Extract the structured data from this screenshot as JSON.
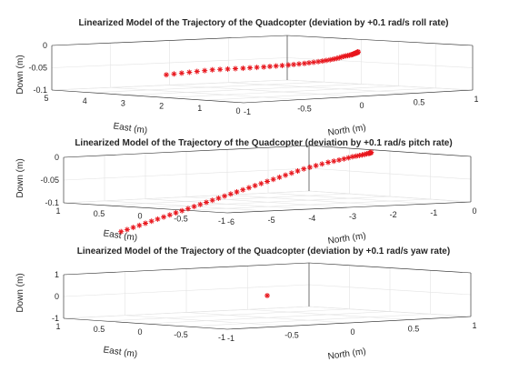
{
  "marker_color": "#e8161d",
  "chart_data": [
    {
      "type": "scatter3d",
      "title": "Linearized Model of the Trajectory of the Quadcopter (deviation by +0.1 rad/s roll rate)",
      "xlabel": "North (m)",
      "ylabel": "East (m)",
      "zlabel": "Down (m)",
      "xlim": [
        -1,
        1
      ],
      "ylim": [
        0,
        5
      ],
      "zlim": [
        -0.1,
        0
      ],
      "xticks": [
        "-1",
        "-0.5",
        "0",
        "0.5",
        "1"
      ],
      "yticks": [
        "0",
        "1",
        "2",
        "3",
        "4",
        "5"
      ],
      "zticks": [
        "-0.1",
        "-0.05",
        "0"
      ],
      "grid": true,
      "marker": "*",
      "series": [
        {
          "x": [
            0,
            0,
            0,
            0,
            0,
            0,
            0,
            0,
            0,
            0,
            0,
            0,
            0,
            0,
            0,
            0,
            0,
            0,
            0,
            0,
            0,
            0,
            0,
            0,
            0,
            0,
            0,
            0,
            0,
            0,
            0,
            0,
            0,
            0,
            0,
            0,
            0,
            0,
            0,
            0,
            0,
            0,
            0,
            0,
            0,
            0,
            0,
            0,
            0,
            0
          ],
          "y": [
            5.0,
            4.8,
            4.6,
            4.4,
            4.2,
            4.0,
            3.8,
            3.6,
            3.4,
            3.2,
            3.0,
            2.82,
            2.64,
            2.46,
            2.3,
            2.14,
            1.98,
            1.82,
            1.68,
            1.54,
            1.4,
            1.28,
            1.16,
            1.04,
            0.93,
            0.83,
            0.73,
            0.64,
            0.56,
            0.49,
            0.43,
            0.37,
            0.32,
            0.27,
            0.23,
            0.19,
            0.16,
            0.13,
            0.11,
            0.09,
            0.07,
            0.05,
            0.04,
            0.03,
            0.02,
            0.015,
            0.01,
            0.005,
            0.002,
            0.0
          ],
          "z": [
            -0.08,
            -0.077,
            -0.074,
            -0.071,
            -0.068,
            -0.065,
            -0.062,
            -0.06,
            -0.058,
            -0.056,
            -0.054,
            -0.052,
            -0.05,
            -0.048,
            -0.046,
            -0.044,
            -0.042,
            -0.04,
            -0.038,
            -0.036,
            -0.034,
            -0.032,
            -0.03,
            -0.028,
            -0.026,
            -0.024,
            -0.022,
            -0.02,
            -0.018,
            -0.016,
            -0.014,
            -0.012,
            -0.011,
            -0.01,
            -0.009,
            -0.008,
            -0.007,
            -0.006,
            -0.005,
            -0.004,
            -0.0035,
            -0.003,
            -0.0025,
            -0.002,
            -0.0015,
            -0.001,
            -0.0008,
            -0.0005,
            -0.0002,
            0.0
          ]
        }
      ]
    },
    {
      "type": "scatter3d",
      "title": "Linearized Model of the Trajectory of the Quadcopter (deviation by +0.1 rad/s pitch rate)",
      "xlabel": "North (m)",
      "ylabel": "East (m)",
      "zlabel": "Down (m)",
      "xlim": [
        -6,
        0
      ],
      "ylim": [
        -1,
        1
      ],
      "zlim": [
        -0.1,
        0
      ],
      "xticks": [
        "-6",
        "-5",
        "-4",
        "-3",
        "-2",
        "-1",
        "0"
      ],
      "yticks": [
        "-1",
        "-0.5",
        "0",
        "0.5",
        "1"
      ],
      "zticks": [
        "-0.1",
        "-0.05",
        "0"
      ],
      "grid": true,
      "marker": "*",
      "series": [
        {
          "x": [
            -6.6,
            -6.45,
            -6.3,
            -6.15,
            -6.0,
            -5.85,
            -5.7,
            -5.55,
            -5.4,
            -5.25,
            -5.1,
            -4.95,
            -4.8,
            -4.65,
            -4.5,
            -4.35,
            -4.2,
            -4.05,
            -3.9,
            -3.75,
            -3.6,
            -3.45,
            -3.3,
            -3.15,
            -3.0,
            -2.85,
            -2.7,
            -2.55,
            -2.4,
            -2.25,
            -2.1,
            -1.95,
            -1.8,
            -1.65,
            -1.5,
            -1.36,
            -1.23,
            -1.11,
            -1.0,
            -0.9,
            -0.81,
            -0.73,
            -0.66,
            -0.6,
            -0.55,
            -0.51,
            -0.48,
            -0.46,
            -0.45,
            -0.44
          ],
          "y": [
            0,
            0,
            0,
            0,
            0,
            0,
            0,
            0,
            0,
            0,
            0,
            0,
            0,
            0,
            0,
            0,
            0,
            0,
            0,
            0,
            0,
            0,
            0,
            0,
            0,
            0,
            0,
            0,
            0,
            0,
            0,
            0,
            0,
            0,
            0,
            0,
            0,
            0,
            0,
            0,
            0,
            0,
            0,
            0,
            0,
            0,
            0,
            0,
            0,
            0
          ],
          "z": [
            -0.15,
            -0.146,
            -0.142,
            -0.138,
            -0.134,
            -0.13,
            -0.126,
            -0.122,
            -0.118,
            -0.114,
            -0.11,
            -0.106,
            -0.102,
            -0.098,
            -0.094,
            -0.09,
            -0.086,
            -0.082,
            -0.078,
            -0.074,
            -0.07,
            -0.066,
            -0.062,
            -0.058,
            -0.054,
            -0.05,
            -0.046,
            -0.042,
            -0.038,
            -0.034,
            -0.03,
            -0.027,
            -0.024,
            -0.021,
            -0.018,
            -0.016,
            -0.014,
            -0.012,
            -0.01,
            -0.008,
            -0.007,
            -0.006,
            -0.005,
            -0.004,
            -0.003,
            -0.0025,
            -0.002,
            -0.0015,
            -0.001,
            0.0
          ]
        }
      ]
    },
    {
      "type": "scatter3d",
      "title": "Linearized Model of the Trajectory of the Quadcopter (deviation by +0.1 rad/s yaw rate)",
      "xlabel": "North (m)",
      "ylabel": "East (m)",
      "zlabel": "Down (m)",
      "xlim": [
        -1,
        1
      ],
      "ylim": [
        -1,
        1
      ],
      "zlim": [
        -1,
        1
      ],
      "xticks": [
        "-1",
        "-0.5",
        "0",
        "0.5",
        "1"
      ],
      "yticks": [
        "-1",
        "-0.5",
        "0",
        "0.5",
        "1"
      ],
      "zticks": [
        "-1",
        "0",
        "1"
      ],
      "grid": true,
      "marker": "*",
      "series": [
        {
          "x": [
            0
          ],
          "y": [
            0
          ],
          "z": [
            0
          ]
        }
      ]
    }
  ]
}
